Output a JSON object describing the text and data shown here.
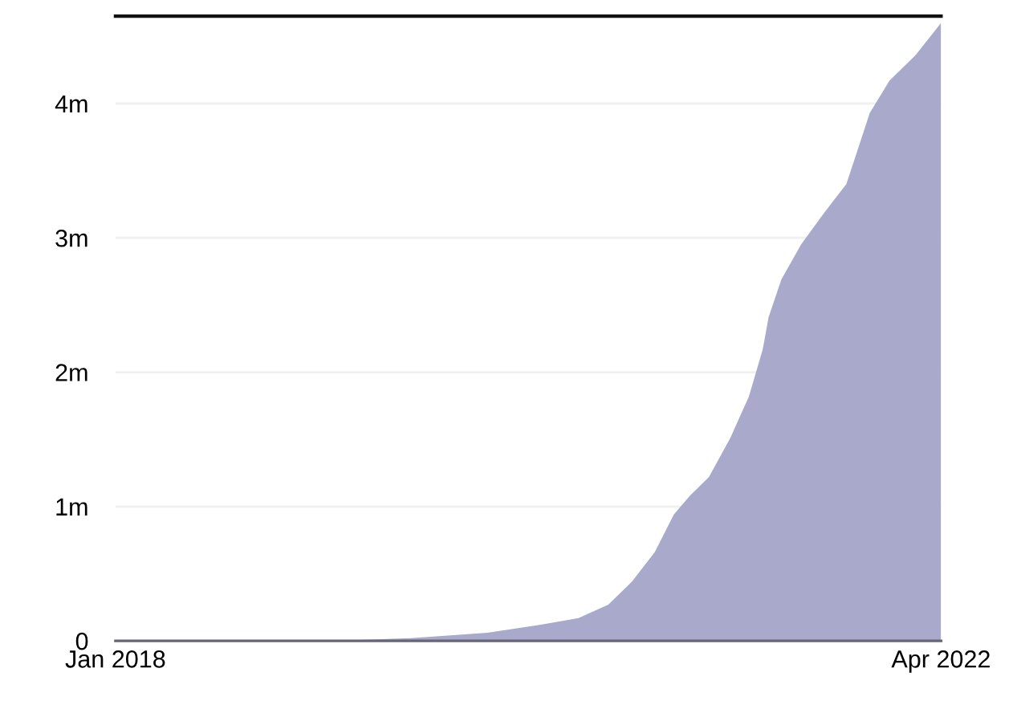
{
  "chart_data": {
    "type": "area",
    "color": "#a9a9cc",
    "x": [
      "2018-01-01",
      "2019-02-20",
      "2019-07-10",
      "2019-12-01",
      "2020-03-10",
      "2020-05-20",
      "2020-07-15",
      "2020-08-28",
      "2020-10-10",
      "2020-11-15",
      "2020-12-15",
      "2021-01-20",
      "2021-03-01",
      "2021-04-05",
      "2021-05-01",
      "2021-05-12",
      "2021-06-05",
      "2021-07-12",
      "2021-08-25",
      "2021-10-05",
      "2021-10-25",
      "2021-11-18",
      "2021-12-25",
      "2022-02-12",
      "2022-04-01"
    ],
    "values": [
      0,
      0,
      20000,
      60000,
      120000,
      170000,
      270000,
      440000,
      660000,
      940000,
      1080000,
      1220000,
      1510000,
      1820000,
      2170000,
      2410000,
      2690000,
      2950000,
      3190000,
      3400000,
      3640000,
      3930000,
      4170000,
      4360000,
      4600000
    ],
    "xlim": [
      "2018-01-01",
      "2022-04-01"
    ],
    "xticks": [
      {
        "value": "2018-01-01",
        "label": "Jan 2018"
      },
      {
        "value": "2022-04-01",
        "label": "Apr 2022"
      }
    ],
    "ylim": [
      0,
      4650000
    ],
    "yticks": [
      0,
      {
        "value": 1000000,
        "label": "1m"
      },
      {
        "value": 2000000,
        "label": "2m"
      },
      {
        "value": 3000000,
        "label": "3m"
      },
      {
        "value": 4000000,
        "label": "4m"
      }
    ],
    "grid": "y"
  }
}
